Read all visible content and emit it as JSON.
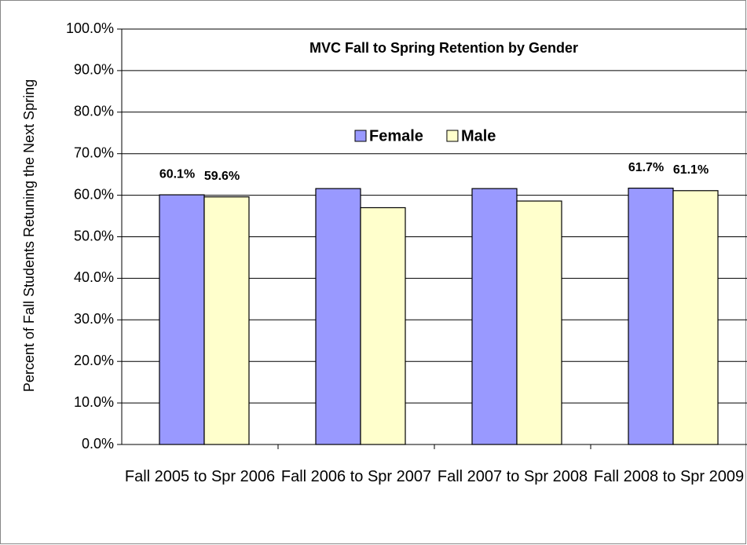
{
  "chart_data": {
    "type": "bar",
    "title": "MVC Fall to Spring Retention by Gender",
    "y_label": "Percent of Fall Students Retuning the Next Spring",
    "categories": [
      "Fall 2005 to Spr 2006",
      "Fall 2006 to Spr 2007",
      "Fall 2007 to Spr 2008",
      "Fall 2008 to Spr 2009"
    ],
    "series": [
      {
        "name": "Female",
        "color": "#9999ff",
        "values": [
          60.1,
          61.6,
          61.6,
          61.7
        ],
        "value_labels": [
          "60.1%",
          null,
          null,
          "61.7%"
        ]
      },
      {
        "name": "Male",
        "color": "#ffffcc",
        "values": [
          59.6,
          57.0,
          58.6,
          61.1
        ],
        "value_labels": [
          "59.6%",
          null,
          null,
          "61.1%"
        ]
      }
    ],
    "ylim": [
      0,
      100
    ],
    "yticks": [
      {
        "value": 0,
        "label": "0.0%"
      },
      {
        "value": 10,
        "label": "10.0%"
      },
      {
        "value": 20,
        "label": "20.0%"
      },
      {
        "value": 30,
        "label": "30.0%"
      },
      {
        "value": 40,
        "label": "40.0%"
      },
      {
        "value": 50,
        "label": "50.0%"
      },
      {
        "value": 60,
        "label": "60.0%"
      },
      {
        "value": 70,
        "label": "70.0%"
      },
      {
        "value": 80,
        "label": "80.0%"
      },
      {
        "value": 90,
        "label": "90.0%"
      },
      {
        "value": 100,
        "label": "100.0%"
      }
    ],
    "grid": true
  }
}
